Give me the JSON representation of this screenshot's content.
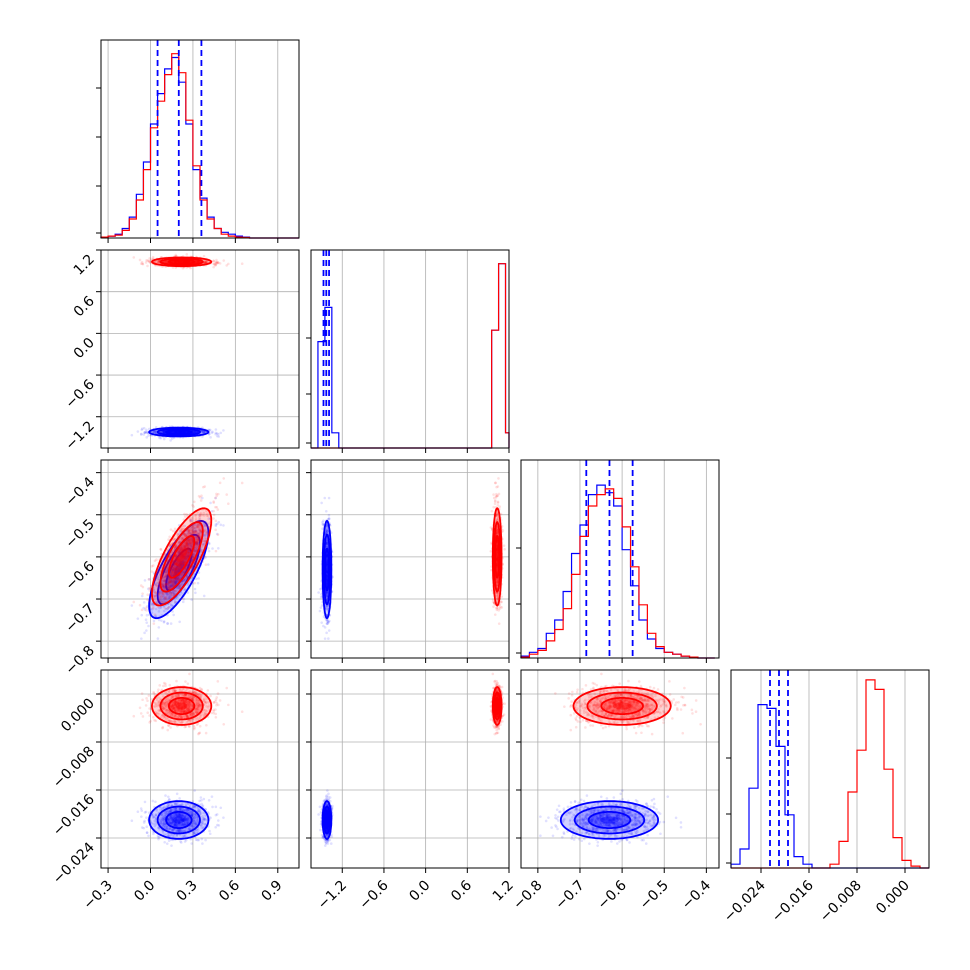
{
  "chart_data": {
    "type": "corner",
    "colors": {
      "series_a": "#0000ff",
      "series_b": "#ff0000"
    },
    "grid": true,
    "params": [
      {
        "range": [
          -0.35,
          1.05
        ],
        "ticks": [
          -0.3,
          0.0,
          0.3,
          0.6,
          0.9
        ],
        "tick_labels": [
          "−0.3",
          "0.0",
          "0.3",
          "0.6",
          "0.9"
        ]
      },
      {
        "range": [
          -1.65,
          1.2
        ],
        "ticks": [
          -1.2,
          -0.6,
          0.0,
          0.6,
          1.2
        ],
        "tick_labels": [
          "−1.2",
          "−0.6",
          "0.0",
          "0.6",
          "1.2"
        ]
      },
      {
        "range": [
          -0.84,
          -0.37
        ],
        "ticks": [
          -0.8,
          -0.7,
          -0.6,
          -0.5,
          -0.4
        ],
        "tick_labels": [
          "−0.8",
          "−0.7",
          "−0.6",
          "−0.5",
          "−0.4"
        ]
      },
      {
        "range": [
          -0.029,
          0.004
        ],
        "ticks": [
          -0.024,
          -0.016,
          -0.008,
          0.0
        ],
        "tick_labels": [
          "−0.024",
          "−0.016",
          "−0.008",
          "0.000"
        ]
      }
    ],
    "series": [
      {
        "color": "#0000ff",
        "mean": [
          0.2,
          -1.42,
          -0.63,
          -0.021
        ],
        "std": [
          0.1,
          0.03,
          0.055,
          0.0015
        ],
        "corr_2_0": 0.75,
        "quantiles": [
          [
            0.05,
            0.2,
            0.36
          ],
          [
            -1.47,
            -1.43,
            -1.39
          ],
          [
            -0.685,
            -0.63,
            -0.575
          ],
          [
            -0.0225,
            -0.021,
            -0.0195
          ]
        ]
      },
      {
        "color": "#ff0000",
        "mean": [
          0.22,
          1.03,
          -0.6,
          -0.002
        ],
        "std": [
          0.1,
          0.03,
          0.055,
          0.0015
        ],
        "corr_2_0": 0.75
      }
    ],
    "histograms": {
      "p0": {
        "bin_edges": [
          -0.35,
          -0.3,
          -0.25,
          -0.2,
          -0.15,
          -0.1,
          -0.05,
          0.0,
          0.05,
          0.1,
          0.15,
          0.2,
          0.25,
          0.3,
          0.35,
          0.4,
          0.45,
          0.5,
          0.55,
          0.6,
          0.65,
          0.7,
          0.75,
          0.8,
          0.85,
          0.9,
          0.95,
          1.0,
          1.05
        ],
        "series_a": [
          0.005,
          0.01,
          0.02,
          0.05,
          0.11,
          0.23,
          0.4,
          0.6,
          0.76,
          0.89,
          0.95,
          0.82,
          0.6,
          0.36,
          0.21,
          0.11,
          0.05,
          0.03,
          0.02,
          0.01,
          0.005,
          0.0,
          0.0,
          0.0,
          0.0,
          0.0,
          0.0,
          0.0
        ],
        "series_b": [
          0.005,
          0.01,
          0.015,
          0.04,
          0.1,
          0.2,
          0.36,
          0.58,
          0.72,
          0.86,
          0.97,
          0.87,
          0.62,
          0.38,
          0.2,
          0.1,
          0.05,
          0.02,
          0.01,
          0.005,
          0.003,
          0.0,
          0.0,
          0.0,
          0.0,
          0.0,
          0.0,
          0.0
        ]
      },
      "p1": {
        "bin_edges": [
          -1.65,
          -1.55,
          -1.45,
          -1.35,
          -1.25,
          -1.15,
          -1.05,
          -0.95,
          -0.85,
          -0.75,
          -0.65,
          -0.55,
          -0.45,
          -0.35,
          -0.25,
          -0.15,
          -0.05,
          0.05,
          0.15,
          0.25,
          0.35,
          0.45,
          0.55,
          0.65,
          0.75,
          0.85,
          0.95,
          1.05,
          1.15,
          1.2
        ],
        "series_a": [
          0.0,
          0.56,
          0.74,
          0.08,
          0.0,
          0.0,
          0.0,
          0.0,
          0.0,
          0.0,
          0.0,
          0.0,
          0.0,
          0.0,
          0.0,
          0.0,
          0.0,
          0.0,
          0.0,
          0.0,
          0.0,
          0.0,
          0.0,
          0.0,
          0.0,
          0.0,
          0.62,
          0.97,
          0.08
        ],
        "series_b": [
          0.0,
          0.0,
          0.0,
          0.0,
          0.0,
          0.0,
          0.0,
          0.0,
          0.0,
          0.0,
          0.0,
          0.0,
          0.0,
          0.0,
          0.0,
          0.0,
          0.0,
          0.0,
          0.0,
          0.0,
          0.0,
          0.0,
          0.0,
          0.0,
          0.0,
          0.0,
          0.62,
          0.97,
          0.08
        ]
      },
      "p2": {
        "bin_edges": [
          -0.84,
          -0.82,
          -0.8,
          -0.78,
          -0.76,
          -0.74,
          -0.72,
          -0.7,
          -0.68,
          -0.66,
          -0.64,
          -0.62,
          -0.6,
          -0.58,
          -0.56,
          -0.54,
          -0.52,
          -0.5,
          -0.48,
          -0.46,
          -0.44,
          -0.42,
          -0.4,
          -0.38
        ],
        "series_a": [
          0.01,
          0.03,
          0.05,
          0.13,
          0.2,
          0.35,
          0.55,
          0.7,
          0.86,
          0.91,
          0.87,
          0.8,
          0.57,
          0.38,
          0.2,
          0.1,
          0.05,
          0.03,
          0.02,
          0.01,
          0.005,
          0.0,
          0.0
        ],
        "series_b": [
          0.005,
          0.02,
          0.04,
          0.09,
          0.15,
          0.26,
          0.44,
          0.64,
          0.8,
          0.86,
          0.89,
          0.84,
          0.69,
          0.48,
          0.28,
          0.13,
          0.06,
          0.03,
          0.02,
          0.01,
          0.005,
          0.0,
          0.0
        ]
      },
      "p3": {
        "bin_edges": [
          -0.029,
          -0.0275,
          -0.026,
          -0.0245,
          -0.023,
          -0.0215,
          -0.02,
          -0.0185,
          -0.017,
          -0.0155,
          -0.014,
          -0.0125,
          -0.011,
          -0.0095,
          -0.008,
          -0.0065,
          -0.005,
          -0.0035,
          -0.002,
          -0.0005,
          0.001,
          0.0025,
          0.004
        ],
        "series_a": [
          0.02,
          0.1,
          0.42,
          0.86,
          0.84,
          0.64,
          0.28,
          0.06,
          0.02,
          0.0,
          0.0,
          0.0,
          0.0,
          0.0,
          0.0,
          0.0,
          0.0,
          0.0,
          0.0,
          0.0,
          0.0,
          0.0
        ],
        "series_b": [
          0.0,
          0.0,
          0.0,
          0.0,
          0.0,
          0.0,
          0.0,
          0.0,
          0.0,
          0.0,
          0.0,
          0.02,
          0.14,
          0.4,
          0.62,
          0.99,
          0.94,
          0.52,
          0.16,
          0.04,
          0.01,
          0.0
        ]
      }
    }
  }
}
